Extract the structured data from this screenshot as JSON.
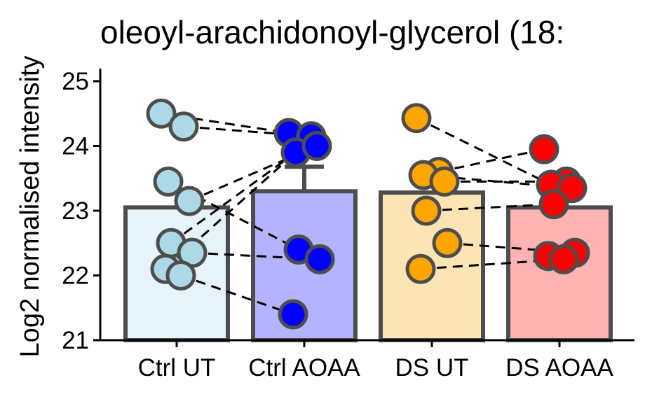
{
  "chart_data": {
    "type": "bar",
    "title": "oleoyl-arachidonoyl-glycerol (18:",
    "ylabel": "Log2 normalised intensity",
    "xlabel": "",
    "ylim": [
      21,
      25.2
    ],
    "yticks": [
      "21",
      "22",
      "23",
      "24",
      "25"
    ],
    "categories": [
      "Ctrl UT",
      "Ctrl AOAA",
      "DS UT",
      "DS AOAA"
    ],
    "values": [
      23.05,
      23.3,
      23.28,
      23.05
    ],
    "error_upper": [
      null,
      23.68,
      null,
      null
    ],
    "bar_fill": [
      "#e6f3fa",
      "#b3b3ff",
      "#fde4b4",
      "#ffb3b3"
    ],
    "point_fill": [
      "#add8e6",
      "#0000ff",
      "#ffa500",
      "#ff0000"
    ],
    "edge_color": "#4d4d4d",
    "points": [
      [
        24.5,
        24.3,
        23.45,
        23.15,
        22.5,
        22.35,
        22.1,
        22.0
      ],
      [
        24.2,
        24.15,
        23.9,
        24.0,
        22.4,
        22.25,
        21.4
      ],
      [
        24.43,
        23.6,
        23.55,
        23.45,
        23.0,
        22.5,
        22.1
      ],
      [
        23.95,
        23.45,
        23.4,
        23.35,
        23.1,
        22.35,
        22.3,
        22.25
      ]
    ],
    "pairs": [
      [
        [
          24.5,
          24.2
        ],
        [
          24.3,
          24.15
        ],
        [
          23.45,
          22.4
        ],
        [
          23.15,
          24.0
        ],
        [
          22.5,
          23.9
        ],
        [
          22.35,
          22.25
        ],
        [
          22.1,
          23.9
        ],
        [
          22.0,
          21.4
        ]
      ],
      [
        [
          24.43,
          23.4
        ],
        [
          23.6,
          23.95
        ],
        [
          23.55,
          23.35
        ],
        [
          23.45,
          23.45
        ],
        [
          23.0,
          23.1
        ],
        [
          22.5,
          22.35
        ],
        [
          22.1,
          22.25
        ]
      ]
    ],
    "grid": false,
    "legend": "none"
  }
}
